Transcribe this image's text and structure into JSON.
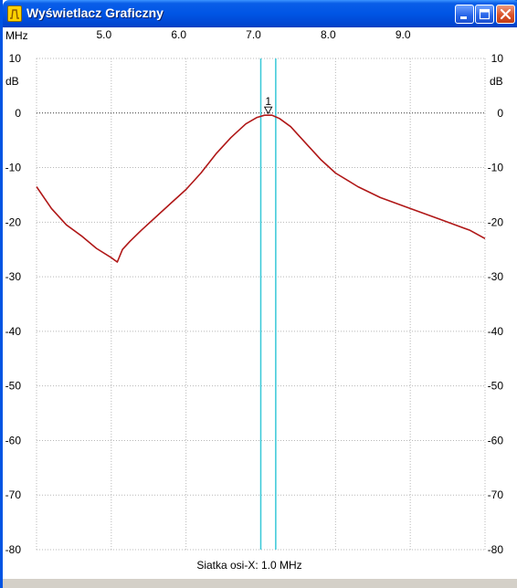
{
  "window": {
    "title": "Wyświetlacz Graficzny",
    "icon": "filter-response-icon"
  },
  "titlebar_buttons": [
    "minimize-icon",
    "maximize-icon",
    "close-icon"
  ],
  "colors": {
    "titlebar": "#0055e5",
    "trace": "#b01818",
    "marker_lines": "#38c8d8",
    "grid": "#b8b8b8"
  },
  "chart_data": {
    "type": "line",
    "x_unit": "MHz",
    "y_unit": "dB",
    "x_ticks": [
      "5.0",
      "6.0",
      "7.0",
      "8.0",
      "9.0"
    ],
    "y_ticks_left": [
      "10",
      "0",
      "-10",
      "-20",
      "-30",
      "-40",
      "-50",
      "-60",
      "-70",
      "-80"
    ],
    "y_ticks_right": [
      "10",
      "0",
      "-10",
      "-20",
      "-30",
      "-40",
      "-50",
      "-60",
      "-70",
      "-80"
    ],
    "xlim": [
      4.0,
      10.0
    ],
    "ylim": [
      -80,
      10
    ],
    "grid": true,
    "reference_line_db": 0,
    "marker": {
      "label": "1",
      "x": 7.1
    },
    "marker_lines_x": [
      7.0,
      7.2
    ],
    "footer": "Siatka osi-X: 1.0 MHz",
    "series": [
      {
        "x": [
          4.0,
          4.2,
          4.4,
          4.6,
          4.8,
          5.0,
          5.08,
          5.15,
          5.25,
          5.4,
          5.6,
          5.8,
          6.0,
          6.2,
          6.4,
          6.6,
          6.8,
          6.95,
          7.05,
          7.15,
          7.25,
          7.4,
          7.6,
          7.8,
          8.0,
          8.3,
          8.6,
          9.0,
          9.4,
          9.8,
          10.0
        ],
        "y": [
          -13.5,
          -17.5,
          -20.5,
          -22.5,
          -24.8,
          -26.5,
          -27.3,
          -25.0,
          -23.5,
          -21.5,
          -19.0,
          -16.5,
          -14.0,
          -11.0,
          -7.5,
          -4.5,
          -2.0,
          -0.8,
          -0.4,
          -0.4,
          -1.0,
          -2.5,
          -5.5,
          -8.5,
          -11.0,
          -13.5,
          -15.5,
          -17.5,
          -19.5,
          -21.5,
          -23.0
        ]
      }
    ]
  }
}
